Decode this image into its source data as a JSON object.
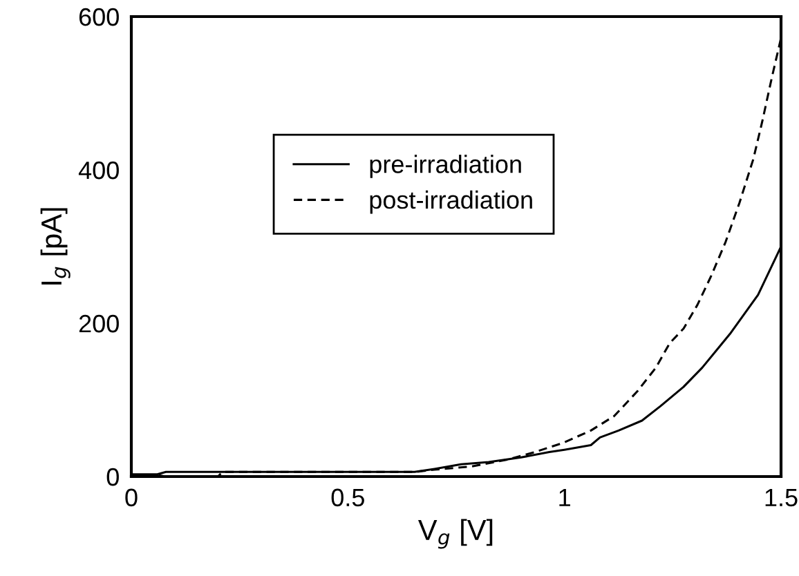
{
  "chart_data": {
    "type": "line",
    "xlabel": "V$_{g}$ [V]",
    "ylabel": "I$_{g}$ [pA]",
    "xlim": [
      0,
      1.5
    ],
    "ylim": [
      0,
      600
    ],
    "xticks": [
      0,
      0.5,
      1,
      1.5
    ],
    "yticks": [
      0,
      200,
      400,
      600
    ],
    "grid": false,
    "legend": "top left",
    "marker": "none",
    "series": [
      {
        "name": "pre-irradiation",
        "color": "#000000",
        "line_style": "solid",
        "x": [
          0,
          0.06,
          0.08,
          0.3,
          0.5,
          0.654,
          0.7,
          0.761,
          0.825,
          0.9,
          0.965,
          1.0,
          1.061,
          1.082,
          1.125,
          1.179,
          1.222,
          1.275,
          1.318,
          1.382,
          1.447,
          1.5
        ],
        "values": [
          3,
          3,
          6,
          6,
          6,
          6,
          10,
          16,
          19,
          25,
          32,
          35,
          41,
          51,
          60,
          73,
          92,
          117,
          142,
          186,
          237,
          300
        ]
      },
      {
        "name": "post-irradiation",
        "color": "#000000",
        "line_style": "dashed",
        "x": [
          0,
          0.06,
          0.08,
          0.2,
          0.21,
          0.5,
          0.654,
          0.7,
          0.783,
          0.868,
          0.932,
          0.997,
          1.061,
          1.115,
          1.168,
          1.211,
          1.243,
          1.275,
          1.307,
          1.339,
          1.372,
          1.404,
          1.436,
          1.457,
          1.479,
          1.5
        ],
        "values": [
          2,
          2,
          0,
          0,
          6,
          6,
          6,
          9,
          13,
          22,
          32,
          44,
          60,
          79,
          111,
          142,
          174,
          193,
          224,
          262,
          306,
          357,
          414,
          464,
          521,
          572
        ]
      }
    ]
  }
}
